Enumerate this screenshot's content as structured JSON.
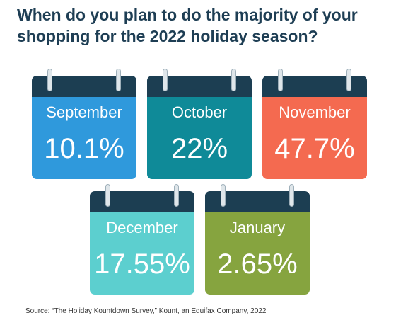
{
  "title": "When do you plan to do the majority of your shopping for the 2022 holiday season?",
  "source": "Source: “The Holiday Kountdown Survey,” Kount, an Equifax Company, 2022",
  "colors": {
    "header": "#1c3e52",
    "September": "#2f99dc",
    "October": "#0f8a98",
    "November": "#f46a50",
    "December": "#5ccfcf",
    "January": "#86a43f"
  },
  "chart_data": {
    "type": "table",
    "title": "When do you plan to do the majority of your shopping for the 2022 holiday season?",
    "categories": [
      "September",
      "October",
      "November",
      "December",
      "January"
    ],
    "values": [
      10.1,
      22,
      47.7,
      17.55,
      2.65
    ],
    "labels": [
      "10.1%",
      "22%",
      "47.7%",
      "17.55%",
      "2.65%"
    ],
    "unit": "%"
  }
}
